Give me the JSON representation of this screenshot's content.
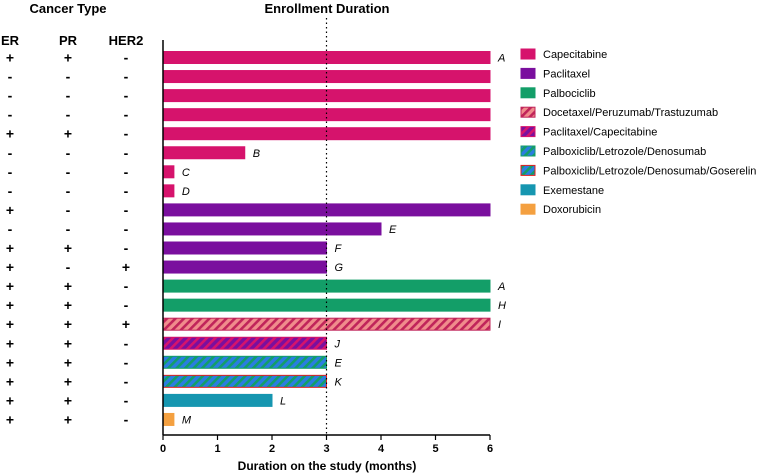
{
  "headers": {
    "cancer_type": "Cancer Type",
    "enrollment": "Enrollment Duration",
    "er": "ER",
    "pr": "PR",
    "her2": "HER2"
  },
  "chart_data": {
    "type": "bar",
    "orientation": "horizontal",
    "xlabel": "Duration on the study (months)",
    "xlim": [
      0,
      6
    ],
    "xticks": [
      "0",
      "1",
      "2",
      "3",
      "4",
      "5",
      "6"
    ],
    "reference_line": {
      "x": 3,
      "style": "dotted"
    },
    "grid": false,
    "legend_position": "right",
    "legend": [
      {
        "name": "Capecitabine",
        "color": "#d6136c",
        "pattern": "solid"
      },
      {
        "name": "Paclitaxel",
        "color": "#7a0f9e",
        "pattern": "solid"
      },
      {
        "name": "Palbociclib",
        "color": "#139e68",
        "pattern": "solid"
      },
      {
        "name": "Docetaxel/Peruzumab/Trastuzumab",
        "color": "#f08c8c",
        "color2": "#c0245a",
        "pattern": "hatch"
      },
      {
        "name": "Paclitaxel/Capecitabine",
        "color": "#7a0f9e",
        "color2": "#d6136c",
        "pattern": "hatch"
      },
      {
        "name": "Palboxiclib/Letrozole/Denosumab",
        "color": "#2a7de1",
        "color2": "#139e68",
        "pattern": "hatch"
      },
      {
        "name": "Palboxiclib/Letrozole/Denosumab/Goserelin",
        "color": "#2a7de1",
        "color2": "#139e68",
        "pattern": "hatch",
        "border": "#e02020"
      },
      {
        "name": "Exemestane",
        "color": "#1696b0",
        "pattern": "solid"
      },
      {
        "name": "Doxorubicin",
        "color": "#f4a040",
        "pattern": "solid"
      }
    ],
    "patients": [
      {
        "er": "+",
        "pr": "+",
        "her2": "-",
        "value": 6,
        "treatment": 0,
        "label": "A"
      },
      {
        "er": "-",
        "pr": "-",
        "her2": "-",
        "value": 6,
        "treatment": 0,
        "label": ""
      },
      {
        "er": "-",
        "pr": "-",
        "her2": "-",
        "value": 6,
        "treatment": 0,
        "label": ""
      },
      {
        "er": "-",
        "pr": "-",
        "her2": "-",
        "value": 6,
        "treatment": 0,
        "label": ""
      },
      {
        "er": "+",
        "pr": "+",
        "her2": "-",
        "value": 6,
        "treatment": 0,
        "label": ""
      },
      {
        "er": "-",
        "pr": "-",
        "her2": "-",
        "value": 1.5,
        "treatment": 0,
        "label": "B"
      },
      {
        "er": "-",
        "pr": "-",
        "her2": "-",
        "value": 0.2,
        "treatment": 0,
        "label": "C"
      },
      {
        "er": "-",
        "pr": "-",
        "her2": "-",
        "value": 0.2,
        "treatment": 0,
        "label": "D"
      },
      {
        "er": "+",
        "pr": "-",
        "her2": "-",
        "value": 6,
        "treatment": 1,
        "label": ""
      },
      {
        "er": "-",
        "pr": "-",
        "her2": "-",
        "value": 4,
        "treatment": 1,
        "label": "E"
      },
      {
        "er": "+",
        "pr": "+",
        "her2": "-",
        "value": 3,
        "treatment": 1,
        "label": "F"
      },
      {
        "er": "+",
        "pr": "-",
        "her2": "+",
        "value": 3,
        "treatment": 1,
        "label": "G"
      },
      {
        "er": "+",
        "pr": "+",
        "her2": "-",
        "value": 6,
        "treatment": 2,
        "label": "A"
      },
      {
        "er": "+",
        "pr": "+",
        "her2": "-",
        "value": 6,
        "treatment": 2,
        "label": "H"
      },
      {
        "er": "+",
        "pr": "+",
        "her2": "+",
        "value": 6,
        "treatment": 3,
        "label": "I"
      },
      {
        "er": "+",
        "pr": "+",
        "her2": "-",
        "value": 3,
        "treatment": 4,
        "label": "J"
      },
      {
        "er": "+",
        "pr": "+",
        "her2": "-",
        "value": 3,
        "treatment": 5,
        "label": "E"
      },
      {
        "er": "+",
        "pr": "+",
        "her2": "-",
        "value": 3,
        "treatment": 6,
        "label": "K"
      },
      {
        "er": "+",
        "pr": "+",
        "her2": "-",
        "value": 2,
        "treatment": 7,
        "label": "L"
      },
      {
        "er": "+",
        "pr": "+",
        "her2": "-",
        "value": 0.2,
        "treatment": 8,
        "label": "M"
      }
    ]
  }
}
